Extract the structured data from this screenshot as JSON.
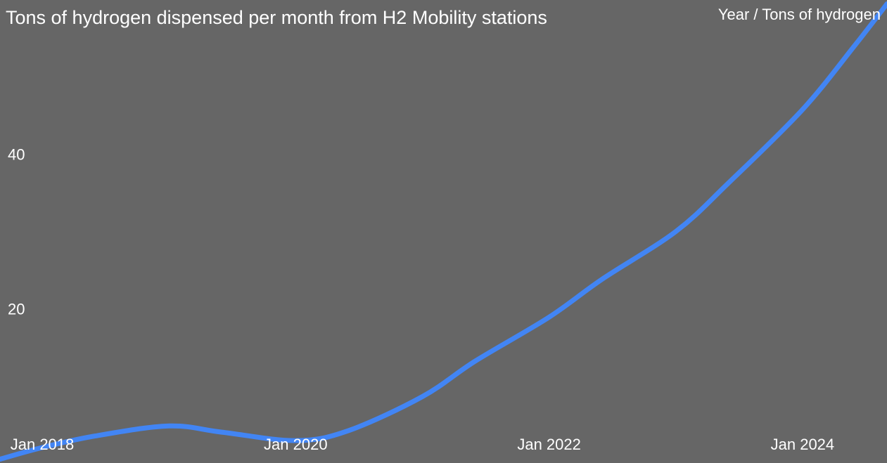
{
  "chart_data": {
    "type": "line",
    "title": "Tons of hydrogen dispensed per month from H2 Mobility stations",
    "axis_caption": "Year / Tons of hydrogen",
    "xlabel": "Year",
    "ylabel": "Tons of hydrogen",
    "x_ticks": [
      "Jan 2018",
      "Jan 2020",
      "Jan 2022",
      "Jan 2024"
    ],
    "y_ticks": [
      20,
      40
    ],
    "xlim": [
      "2017-09-01",
      "2024-09-01"
    ],
    "ylim": [
      0,
      60
    ],
    "grid": false,
    "legend": "none",
    "series": [
      {
        "color": "#4285f4",
        "points": [
          {
            "x": "2017-09-01",
            "y": 0.5
          },
          {
            "x": "2018-01-01",
            "y": 2.0
          },
          {
            "x": "2018-06-01",
            "y": 3.5
          },
          {
            "x": "2019-01-01",
            "y": 4.8
          },
          {
            "x": "2019-06-01",
            "y": 4.0
          },
          {
            "x": "2020-01-01",
            "y": 2.9
          },
          {
            "x": "2020-06-01",
            "y": 4.2
          },
          {
            "x": "2021-01-01",
            "y": 8.6
          },
          {
            "x": "2021-06-01",
            "y": 13.2
          },
          {
            "x": "2022-01-01",
            "y": 18.9
          },
          {
            "x": "2022-06-01",
            "y": 23.8
          },
          {
            "x": "2023-01-01",
            "y": 30.0
          },
          {
            "x": "2023-06-01",
            "y": 36.3
          },
          {
            "x": "2024-01-01",
            "y": 45.8
          },
          {
            "x": "2024-06-01",
            "y": 54.2
          },
          {
            "x": "2024-09-01",
            "y": 59.5
          }
        ]
      }
    ]
  }
}
